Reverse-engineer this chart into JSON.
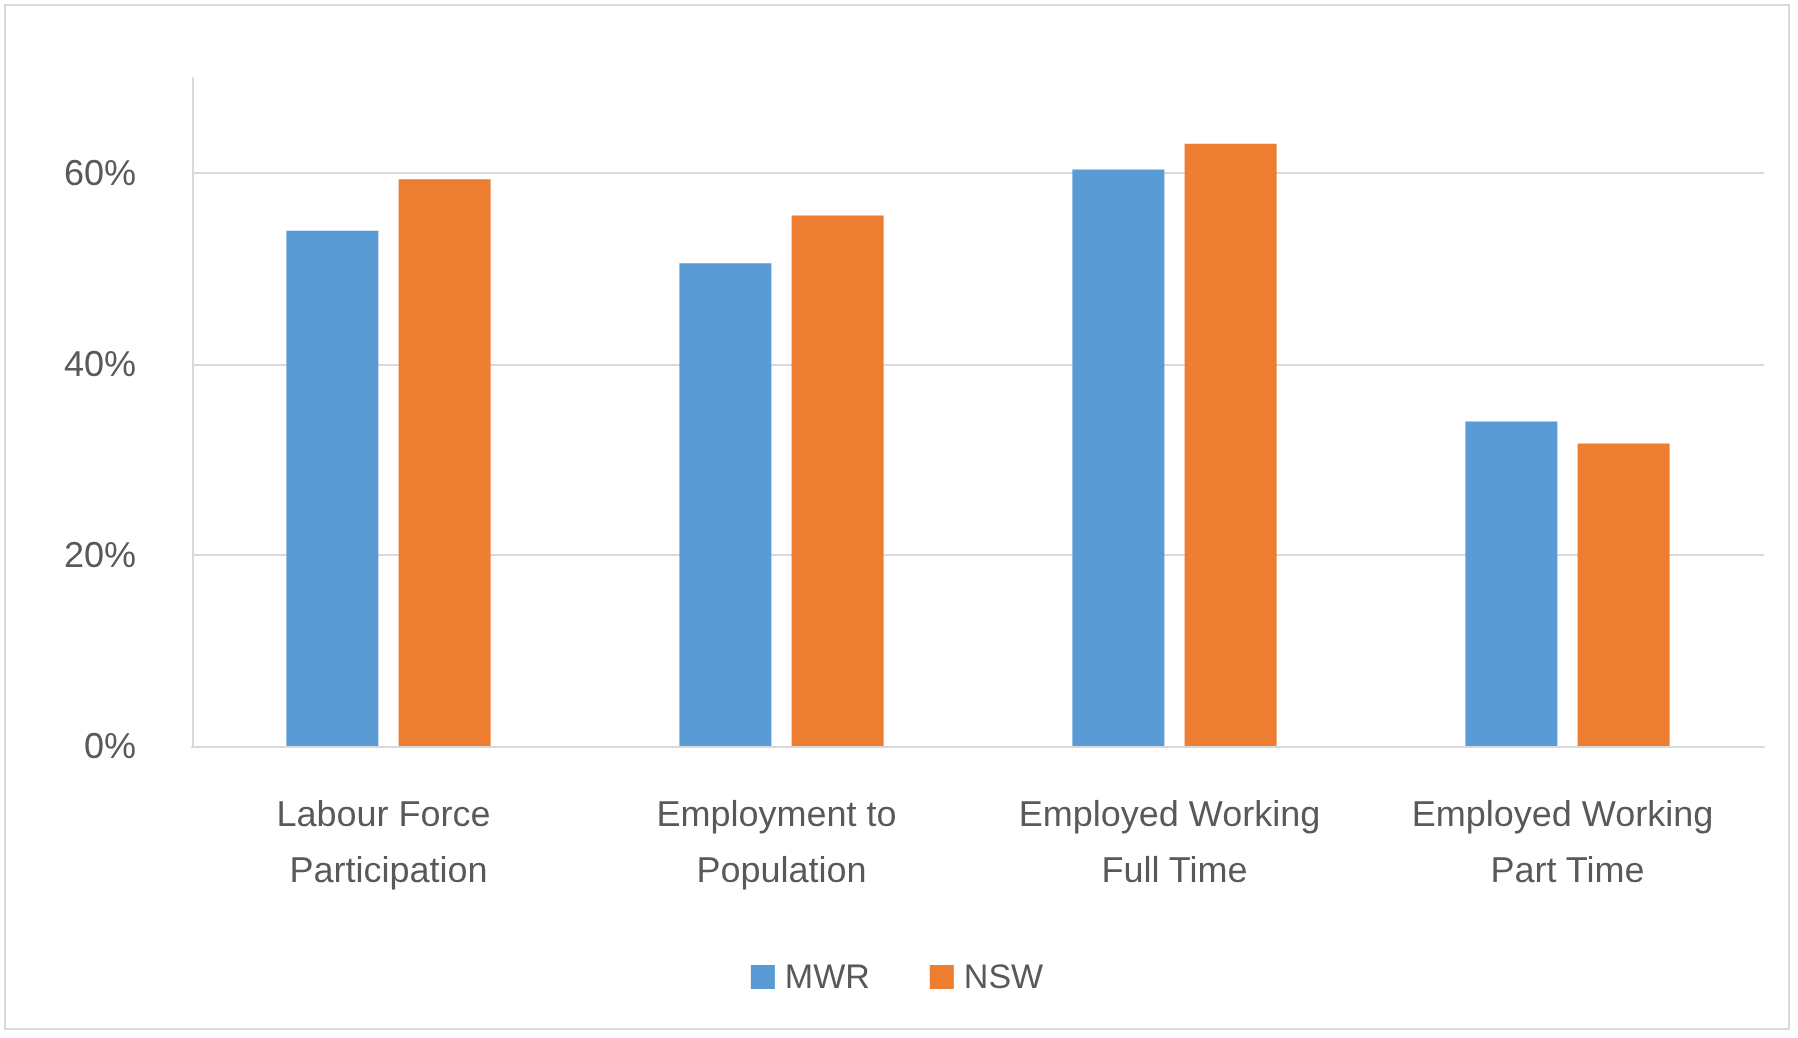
{
  "chart_data": {
    "type": "bar",
    "categories": [
      "Labour Force Participation",
      "Employment to Population",
      "Employed Working Full Time",
      "Employed Working Part Time"
    ],
    "series": [
      {
        "name": "MWR",
        "color": "#5b9bd5",
        "values": [
          54.0,
          50.6,
          60.4,
          34.0
        ]
      },
      {
        "name": "NSW",
        "color": "#ed7d31",
        "values": [
          59.4,
          55.6,
          63.1,
          31.7
        ]
      }
    ],
    "ylim": [
      0,
      70
    ],
    "yticks": [
      {
        "value": 0,
        "label": "0%"
      },
      {
        "value": 20,
        "label": "20%"
      },
      {
        "value": 40,
        "label": "40%"
      },
      {
        "value": 60,
        "label": "60%"
      }
    ],
    "grid": "y",
    "legend": "bottom"
  }
}
